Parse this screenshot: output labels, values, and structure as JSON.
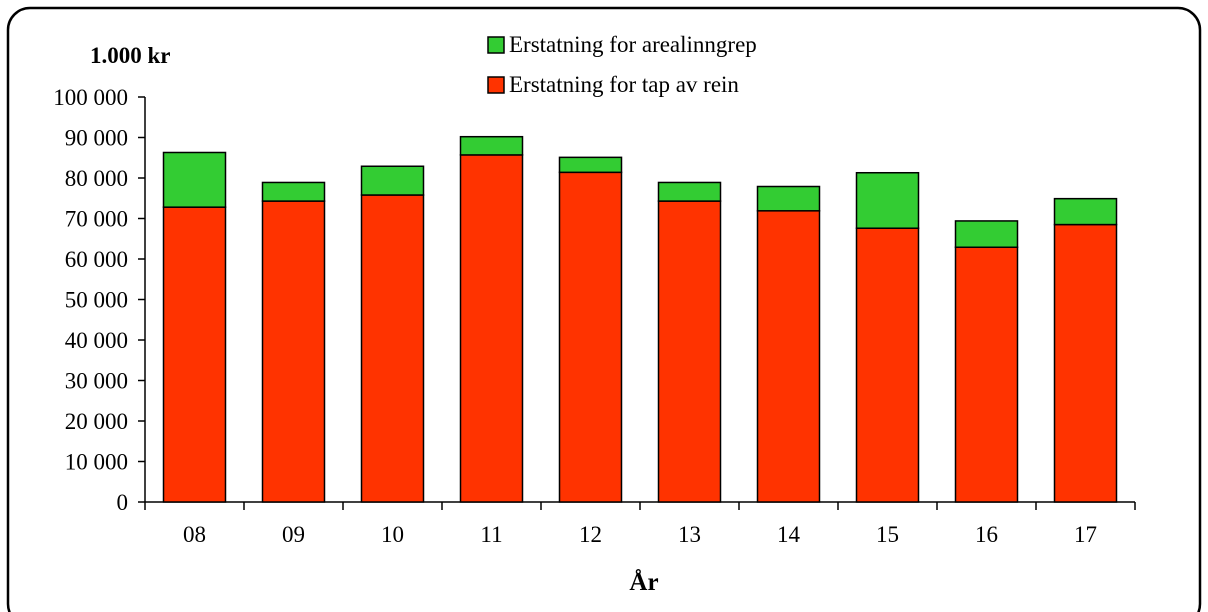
{
  "colors": {
    "arealinngrep": "#33cc33",
    "tap_av_rein": "#ff3300",
    "frame": "#000000",
    "background": "#ffffff"
  },
  "chart_data": {
    "type": "bar",
    "stacked": true,
    "unit_label": "1.000 kr",
    "xlabel": "År",
    "categories": [
      "08",
      "09",
      "10",
      "11",
      "12",
      "13",
      "14",
      "15",
      "16",
      "17"
    ],
    "series": [
      {
        "name": "Erstatning for tap av rein",
        "color": "#ff3300",
        "values": [
          72800,
          74300,
          75800,
          85700,
          81400,
          74300,
          71900,
          67600,
          62900,
          68500
        ]
      },
      {
        "name": "Erstatning  for arealinngrep",
        "color": "#33cc33",
        "values": [
          13500,
          4600,
          7100,
          4500,
          3700,
          4600,
          6000,
          13700,
          6500,
          6400
        ]
      }
    ],
    "legend_order": [
      1,
      0
    ],
    "legend_position": "top-center",
    "ylim": [
      0,
      100000
    ],
    "yticks": [
      0,
      10000,
      20000,
      30000,
      40000,
      50000,
      60000,
      70000,
      80000,
      90000,
      100000
    ],
    "ytick_labels": [
      "0",
      "10 000",
      "20 000",
      "30 000",
      "40 000",
      "50 000",
      "60 000",
      "70 000",
      "80 000",
      "90 000",
      "100 000"
    ],
    "grid": false
  }
}
